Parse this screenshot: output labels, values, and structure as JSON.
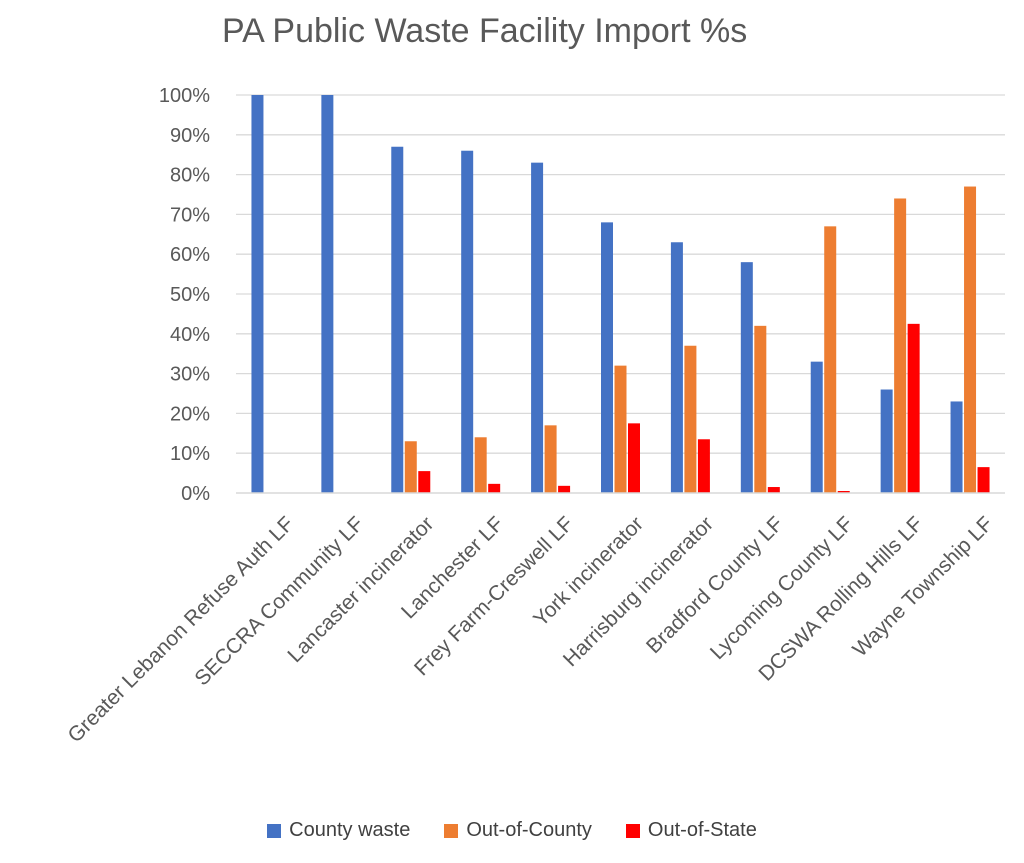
{
  "chart_data": {
    "type": "bar",
    "title": "PA Public Waste Facility Import %s",
    "xlabel": "",
    "ylabel": "",
    "ylim": [
      0,
      100
    ],
    "yticks": [
      "0%",
      "10%",
      "20%",
      "30%",
      "40%",
      "50%",
      "60%",
      "70%",
      "80%",
      "90%",
      "100%"
    ],
    "grid": true,
    "legend_position": "bottom",
    "categories": [
      "Greater Lebanon Refuse Auth LF",
      "SECCRA Community LF",
      "Lancaster incinerator",
      "Lanchester LF",
      "Frey Farm-Creswell LF",
      "York incinerator",
      "Harrisburg incinerator",
      "Bradford County LF",
      "Lycoming County LF",
      "DCSWA Rolling Hills LF",
      "Wayne Township LF"
    ],
    "series": [
      {
        "name": "County waste",
        "color": "#4472C4",
        "values": [
          100,
          100,
          87,
          86,
          83,
          68,
          63,
          58,
          33,
          26,
          23
        ]
      },
      {
        "name": "Out-of-County",
        "color": "#ED7D31",
        "values": [
          0,
          0,
          13,
          14,
          17,
          32,
          37,
          42,
          67,
          74,
          77
        ]
      },
      {
        "name": "Out-of-State",
        "color": "#FF0000",
        "values": [
          0,
          0,
          5.5,
          2.3,
          1.8,
          17.5,
          13.5,
          1.5,
          0.5,
          42.5,
          6.5
        ]
      }
    ]
  }
}
